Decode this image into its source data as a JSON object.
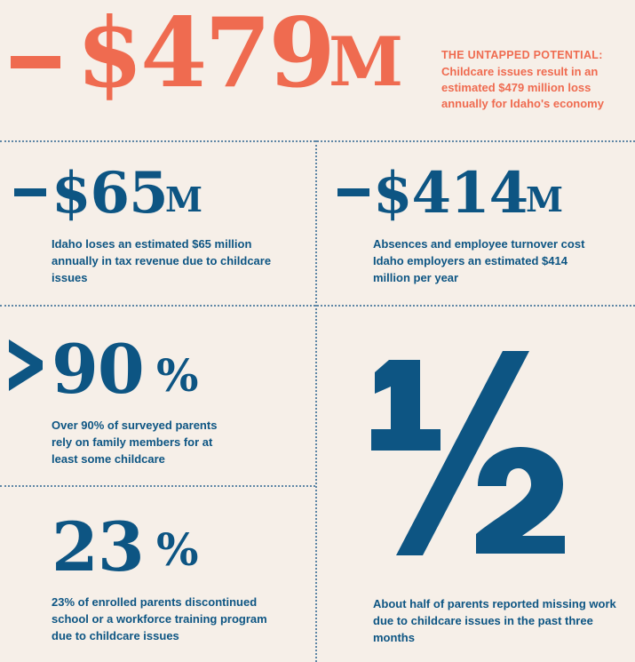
{
  "hero": {
    "sign": "–",
    "value": "$479",
    "unit": "M",
    "heading": "THE UNTAPPED POTENTIAL:",
    "text": "Childcare issues result in an estimated $479 million loss annually for Idaho's economy"
  },
  "stats": [
    {
      "value": "$65",
      "unit": "M",
      "text": "Idaho loses an estimated $65 million annually in tax revenue due to childcare issues"
    },
    {
      "value": "$414",
      "unit": "M",
      "text": "Absences and employee turnover cost Idaho employers an estimated $414 million per year"
    },
    {
      "value": "90",
      "unit": "%",
      "text": "Over 90% of surveyed parents rely on family members for at least some childcare"
    },
    {
      "value": "23",
      "unit": "%",
      "text": "23% of enrolled parents discontinued school or a workforce training program due to childcare issues"
    },
    {
      "value": "1/2",
      "text": "About half of parents reported missing work due to childcare issues in the past three months"
    }
  ],
  "colors": {
    "background": "#f6efe8",
    "blue": "#0d5583",
    "orange": "#ef6b50",
    "divider": "#5f87a6"
  }
}
